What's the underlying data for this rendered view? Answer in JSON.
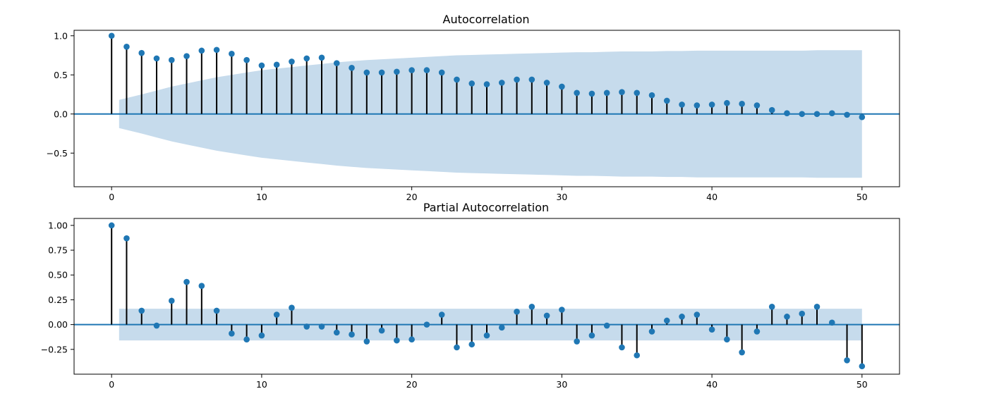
{
  "chart_data": [
    {
      "type": "stem",
      "title": "Autocorrelation",
      "x": [
        0,
        1,
        2,
        3,
        4,
        5,
        6,
        7,
        8,
        9,
        10,
        11,
        12,
        13,
        14,
        15,
        16,
        17,
        18,
        19,
        20,
        21,
        22,
        23,
        24,
        25,
        26,
        27,
        28,
        29,
        30,
        31,
        32,
        33,
        34,
        35,
        36,
        37,
        38,
        39,
        40,
        41,
        42,
        43,
        44,
        45,
        46,
        47,
        48,
        49,
        50
      ],
      "values": [
        1.0,
        0.86,
        0.78,
        0.71,
        0.69,
        0.74,
        0.81,
        0.82,
        0.77,
        0.69,
        0.62,
        0.63,
        0.67,
        0.71,
        0.72,
        0.65,
        0.59,
        0.53,
        0.53,
        0.54,
        0.56,
        0.56,
        0.53,
        0.44,
        0.39,
        0.38,
        0.4,
        0.44,
        0.44,
        0.4,
        0.35,
        0.27,
        0.26,
        0.27,
        0.28,
        0.27,
        0.24,
        0.17,
        0.12,
        0.11,
        0.12,
        0.14,
        0.13,
        0.11,
        0.05,
        0.01,
        0.0,
        0.0,
        0.01,
        -0.01,
        -0.04
      ],
      "confint_upper": [
        0.0,
        0.18,
        0.25,
        0.3,
        0.35,
        0.39,
        0.43,
        0.47,
        0.5,
        0.53,
        0.56,
        0.58,
        0.6,
        0.62,
        0.64,
        0.66,
        0.675,
        0.69,
        0.7,
        0.71,
        0.72,
        0.73,
        0.74,
        0.75,
        0.755,
        0.76,
        0.765,
        0.77,
        0.775,
        0.78,
        0.785,
        0.79,
        0.79,
        0.795,
        0.8,
        0.8,
        0.8,
        0.805,
        0.805,
        0.81,
        0.81,
        0.81,
        0.81,
        0.81,
        0.81,
        0.81,
        0.81,
        0.815,
        0.815,
        0.815,
        0.815
      ],
      "xlim": [
        -2.5,
        52.5
      ],
      "ylim": [
        -0.93,
        1.07
      ],
      "xticks": [
        0,
        10,
        20,
        30,
        40,
        50
      ],
      "yticks": [
        1.0,
        0.5,
        0.0,
        -0.5
      ],
      "ytick_labels": [
        "1.0",
        "0.5",
        "0.0",
        "−0.5"
      ],
      "grid": false,
      "colors": {
        "marker": "#1f77b4",
        "stem": "#000000",
        "band": "#c6dbec",
        "zero_line": "#1f77b4"
      }
    },
    {
      "type": "stem",
      "title": "Partial Autocorrelation",
      "x": [
        0,
        1,
        2,
        3,
        4,
        5,
        6,
        7,
        8,
        9,
        10,
        11,
        12,
        13,
        14,
        15,
        16,
        17,
        18,
        19,
        20,
        21,
        22,
        23,
        24,
        25,
        26,
        27,
        28,
        29,
        30,
        31,
        32,
        33,
        34,
        35,
        36,
        37,
        38,
        39,
        40,
        41,
        42,
        43,
        44,
        45,
        46,
        47,
        48,
        49,
        50
      ],
      "values": [
        1.0,
        0.87,
        0.14,
        -0.01,
        0.24,
        0.43,
        0.39,
        0.14,
        -0.09,
        -0.15,
        -0.11,
        0.1,
        0.17,
        -0.02,
        -0.02,
        -0.08,
        -0.1,
        -0.17,
        -0.06,
        -0.16,
        -0.15,
        0.0,
        0.1,
        -0.23,
        -0.2,
        -0.11,
        -0.03,
        0.13,
        0.18,
        0.09,
        0.15,
        -0.17,
        -0.11,
        -0.01,
        -0.23,
        -0.31,
        -0.07,
        0.04,
        0.08,
        0.1,
        -0.05,
        -0.15,
        -0.28,
        -0.07,
        0.18,
        0.08,
        0.11,
        0.18,
        0.02,
        -0.36,
        -0.42
      ],
      "confint_upper": 0.16,
      "xlim": [
        -2.5,
        52.5
      ],
      "ylim": [
        -0.5,
        1.07
      ],
      "xticks": [
        0,
        10,
        20,
        30,
        40,
        50
      ],
      "yticks": [
        1.0,
        0.75,
        0.5,
        0.25,
        0.0,
        -0.25
      ],
      "ytick_labels": [
        "1.00",
        "0.75",
        "0.50",
        "0.25",
        "0.00",
        "−0.25"
      ],
      "grid": false,
      "colors": {
        "marker": "#1f77b4",
        "stem": "#000000",
        "band": "#c6dbec",
        "zero_line": "#1f77b4"
      }
    }
  ]
}
